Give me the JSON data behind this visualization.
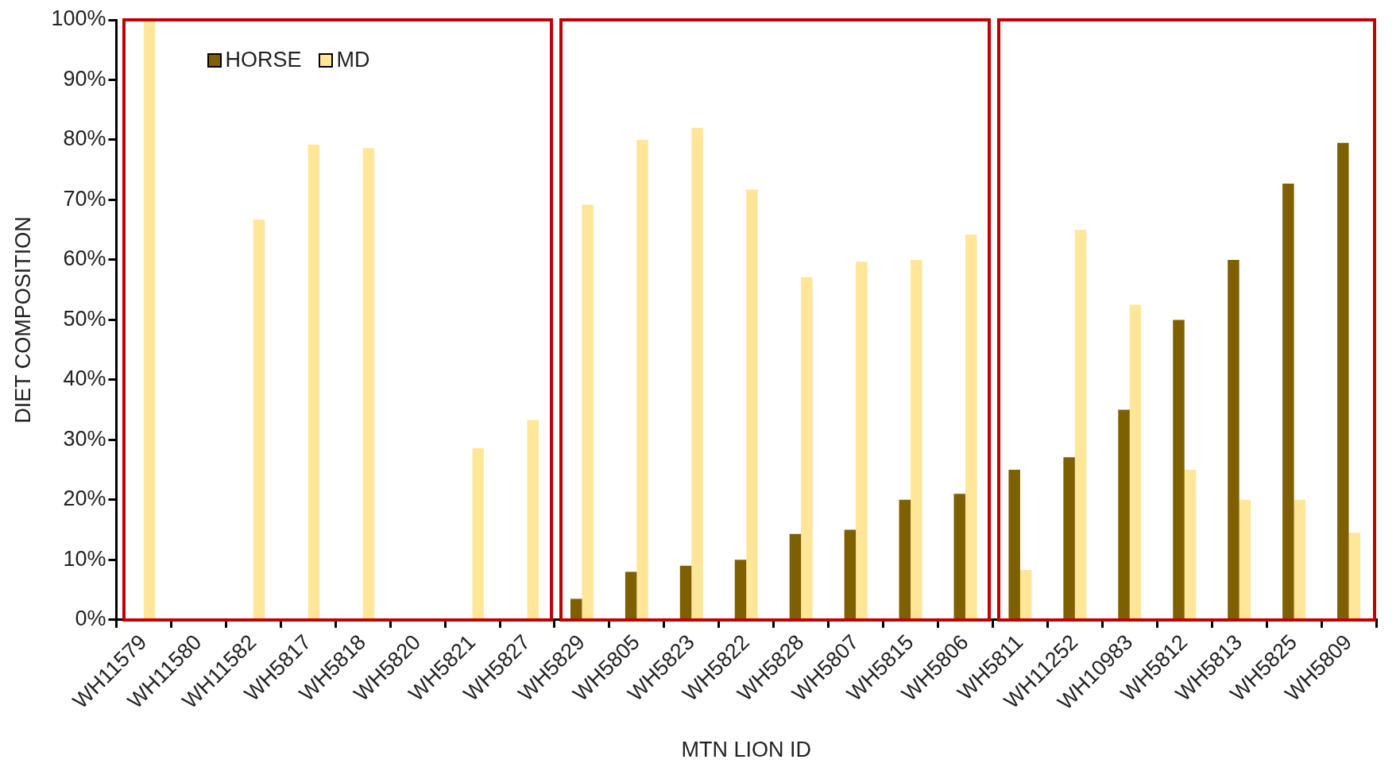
{
  "chart_data": {
    "type": "bar",
    "xlabel": "MTN LION ID",
    "ylabel": "DIET COMPOSITION",
    "categories": [
      "WH11579",
      "WH11580",
      "WH11582",
      "WH5817",
      "WH5818",
      "WH5820",
      "WH5821",
      "WH5827",
      "WH5829",
      "WH5805",
      "WH5823",
      "WH5822",
      "WH5828",
      "WH5807",
      "WH5815",
      "WH5806",
      "WH5811",
      "WH11252",
      "WH10983",
      "WH5812",
      "WH5813",
      "WH5825",
      "WH5809"
    ],
    "series": [
      {
        "name": "HORSE",
        "color": "#7f6000",
        "values": [
          0,
          0,
          0,
          0,
          0,
          0,
          0,
          0,
          3.5,
          8,
          9,
          10,
          14.3,
          15,
          20,
          21,
          25,
          27.1,
          35,
          50,
          60,
          72.7,
          79.5
        ]
      },
      {
        "name": "MD",
        "color": "#ffe699",
        "values": [
          100,
          0,
          66.7,
          79.2,
          78.6,
          0,
          28.6,
          33.3,
          69.2,
          80,
          82,
          71.7,
          57.1,
          59.7,
          60,
          64.2,
          8.3,
          65,
          52.5,
          25,
          20,
          20,
          14.5
        ]
      }
    ],
    "ylim": [
      0,
      100
    ],
    "yticks": [
      {
        "value": 0,
        "label": "0%"
      },
      {
        "value": 10,
        "label": "10%"
      },
      {
        "value": 20,
        "label": "20%"
      },
      {
        "value": 30,
        "label": "30%"
      },
      {
        "value": 40,
        "label": "40%"
      },
      {
        "value": 50,
        "label": "50%"
      },
      {
        "value": 60,
        "label": "60%"
      },
      {
        "value": 70,
        "label": "70%"
      },
      {
        "value": 80,
        "label": "80%"
      },
      {
        "value": 90,
        "label": "90%"
      },
      {
        "value": 100,
        "label": "100%"
      }
    ],
    "grid": false,
    "legend": "top left"
  }
}
